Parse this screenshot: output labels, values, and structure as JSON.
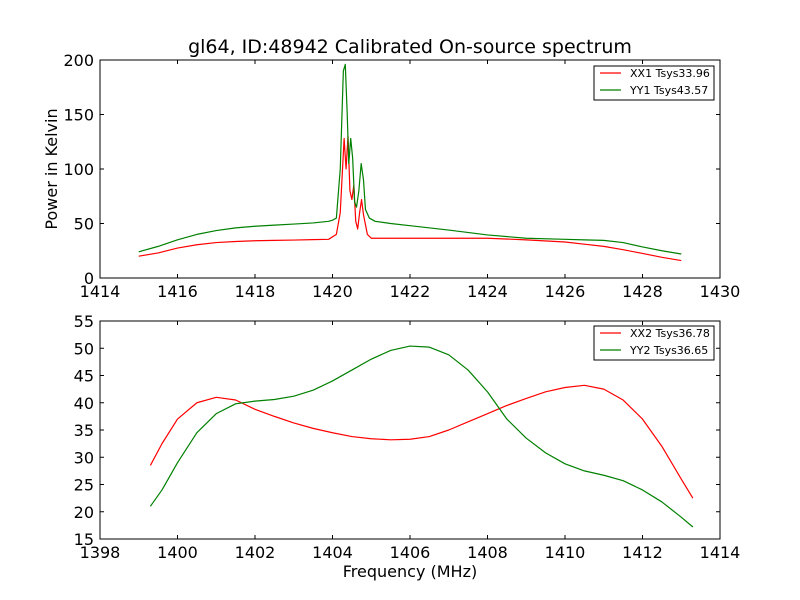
{
  "chart_data": [
    {
      "type": "line",
      "title": "gl64, ID:48942 Calibrated On-source spectrum",
      "xlabel": "",
      "ylabel": "Power in Kelvin",
      "xlim": [
        1414,
        1430
      ],
      "ylim": [
        0,
        200
      ],
      "xticks": [
        1414,
        1416,
        1418,
        1420,
        1422,
        1424,
        1426,
        1428,
        1430
      ],
      "yticks": [
        0,
        50,
        100,
        150,
        200
      ],
      "legend_position": "top-right",
      "grid": false,
      "series": [
        {
          "name": "XX1 Tsys33.96",
          "color": "#ff0000",
          "points": [
            [
              1415.0,
              20
            ],
            [
              1415.5,
              23
            ],
            [
              1416.0,
              27.5
            ],
            [
              1416.5,
              30.5
            ],
            [
              1417.0,
              32.5
            ],
            [
              1417.5,
              33.5
            ],
            [
              1418.0,
              34.2
            ],
            [
              1418.5,
              34.5
            ],
            [
              1419.0,
              34.8
            ],
            [
              1419.5,
              35.2
            ],
            [
              1419.9,
              35.5
            ],
            [
              1420.1,
              40
            ],
            [
              1420.2,
              60
            ],
            [
              1420.3,
              128
            ],
            [
              1420.35,
              100
            ],
            [
              1420.4,
              130
            ],
            [
              1420.45,
              80
            ],
            [
              1420.5,
              72
            ],
            [
              1420.55,
              85
            ],
            [
              1420.6,
              52
            ],
            [
              1420.65,
              45
            ],
            [
              1420.7,
              60
            ],
            [
              1420.75,
              72
            ],
            [
              1420.8,
              58
            ],
            [
              1420.9,
              40
            ],
            [
              1421.0,
              36.5
            ],
            [
              1421.5,
              36.5
            ],
            [
              1422.0,
              36.5
            ],
            [
              1423.0,
              36.5
            ],
            [
              1424.0,
              36.5
            ],
            [
              1425.0,
              35
            ],
            [
              1426.0,
              33
            ],
            [
              1426.5,
              31
            ],
            [
              1427.0,
              29
            ],
            [
              1427.5,
              26
            ],
            [
              1428.0,
              22.5
            ],
            [
              1428.5,
              19
            ],
            [
              1429.0,
              16
            ]
          ]
        },
        {
          "name": "YY1 Tsys43.57",
          "color": "#008000",
          "points": [
            [
              1415.0,
              24
            ],
            [
              1415.5,
              29
            ],
            [
              1416.0,
              35
            ],
            [
              1416.5,
              40
            ],
            [
              1417.0,
              43.5
            ],
            [
              1417.5,
              46
            ],
            [
              1418.0,
              47.5
            ],
            [
              1418.5,
              48.5
            ],
            [
              1419.0,
              49.5
            ],
            [
              1419.5,
              50.5
            ],
            [
              1419.9,
              52
            ],
            [
              1420.0,
              53
            ],
            [
              1420.1,
              55
            ],
            [
              1420.2,
              100
            ],
            [
              1420.28,
              190
            ],
            [
              1420.33,
              196
            ],
            [
              1420.38,
              150
            ],
            [
              1420.42,
              105
            ],
            [
              1420.47,
              128
            ],
            [
              1420.52,
              110
            ],
            [
              1420.57,
              70
            ],
            [
              1420.62,
              65
            ],
            [
              1420.68,
              80
            ],
            [
              1420.74,
              105
            ],
            [
              1420.8,
              90
            ],
            [
              1420.85,
              63
            ],
            [
              1420.95,
              55
            ],
            [
              1421.1,
              52
            ],
            [
              1421.5,
              50
            ],
            [
              1422.0,
              48
            ],
            [
              1423.0,
              44
            ],
            [
              1424.0,
              39.5
            ],
            [
              1425.0,
              36.5
            ],
            [
              1426.0,
              35.5
            ],
            [
              1426.5,
              35
            ],
            [
              1427.0,
              34.5
            ],
            [
              1427.5,
              32.5
            ],
            [
              1428.0,
              28.5
            ],
            [
              1428.5,
              25
            ],
            [
              1429.0,
              22
            ]
          ]
        }
      ]
    },
    {
      "type": "line",
      "title": "",
      "xlabel": "Frequency (MHz)",
      "ylabel": "",
      "xlim": [
        1398,
        1414
      ],
      "ylim": [
        15,
        55
      ],
      "xticks": [
        1398,
        1400,
        1402,
        1404,
        1406,
        1408,
        1410,
        1412,
        1414
      ],
      "yticks": [
        15,
        20,
        25,
        30,
        35,
        40,
        45,
        50,
        55
      ],
      "legend_position": "top-right",
      "grid": false,
      "series": [
        {
          "name": "XX2 Tsys36.78",
          "color": "#ff0000",
          "points": [
            [
              1399.3,
              28.5
            ],
            [
              1399.6,
              32.5
            ],
            [
              1400.0,
              37
            ],
            [
              1400.5,
              40
            ],
            [
              1401.0,
              41
            ],
            [
              1401.5,
              40.5
            ],
            [
              1402.0,
              38.8
            ],
            [
              1402.5,
              37.5
            ],
            [
              1403.0,
              36.3
            ],
            [
              1403.5,
              35.3
            ],
            [
              1404.0,
              34.5
            ],
            [
              1404.5,
              33.8
            ],
            [
              1405.0,
              33.4
            ],
            [
              1405.5,
              33.2
            ],
            [
              1406.0,
              33.3
            ],
            [
              1406.5,
              33.8
            ],
            [
              1407.0,
              35
            ],
            [
              1407.5,
              36.5
            ],
            [
              1408.0,
              38
            ],
            [
              1408.5,
              39.5
            ],
            [
              1409.0,
              40.8
            ],
            [
              1409.5,
              42
            ],
            [
              1410.0,
              42.8
            ],
            [
              1410.5,
              43.2
            ],
            [
              1411.0,
              42.5
            ],
            [
              1411.5,
              40.5
            ],
            [
              1412.0,
              37
            ],
            [
              1412.5,
              32
            ],
            [
              1413.0,
              26
            ],
            [
              1413.3,
              22.5
            ]
          ]
        },
        {
          "name": "YY2 Tsys36.65",
          "color": "#008000",
          "points": [
            [
              1399.3,
              21
            ],
            [
              1399.6,
              24
            ],
            [
              1400.0,
              29
            ],
            [
              1400.5,
              34.5
            ],
            [
              1401.0,
              38
            ],
            [
              1401.5,
              39.8
            ],
            [
              1402.0,
              40.3
            ],
            [
              1402.5,
              40.6
            ],
            [
              1403.0,
              41.2
            ],
            [
              1403.5,
              42.3
            ],
            [
              1404.0,
              44
            ],
            [
              1404.5,
              46
            ],
            [
              1405.0,
              48
            ],
            [
              1405.5,
              49.6
            ],
            [
              1406.0,
              50.4
            ],
            [
              1406.5,
              50.2
            ],
            [
              1407.0,
              48.8
            ],
            [
              1407.5,
              46
            ],
            [
              1408.0,
              42
            ],
            [
              1408.5,
              37
            ],
            [
              1409.0,
              33.5
            ],
            [
              1409.5,
              30.8
            ],
            [
              1410.0,
              28.8
            ],
            [
              1410.5,
              27.5
            ],
            [
              1411.0,
              26.7
            ],
            [
              1411.5,
              25.7
            ],
            [
              1412.0,
              24
            ],
            [
              1412.5,
              21.8
            ],
            [
              1413.0,
              19
            ],
            [
              1413.3,
              17.2
            ]
          ]
        }
      ]
    }
  ]
}
